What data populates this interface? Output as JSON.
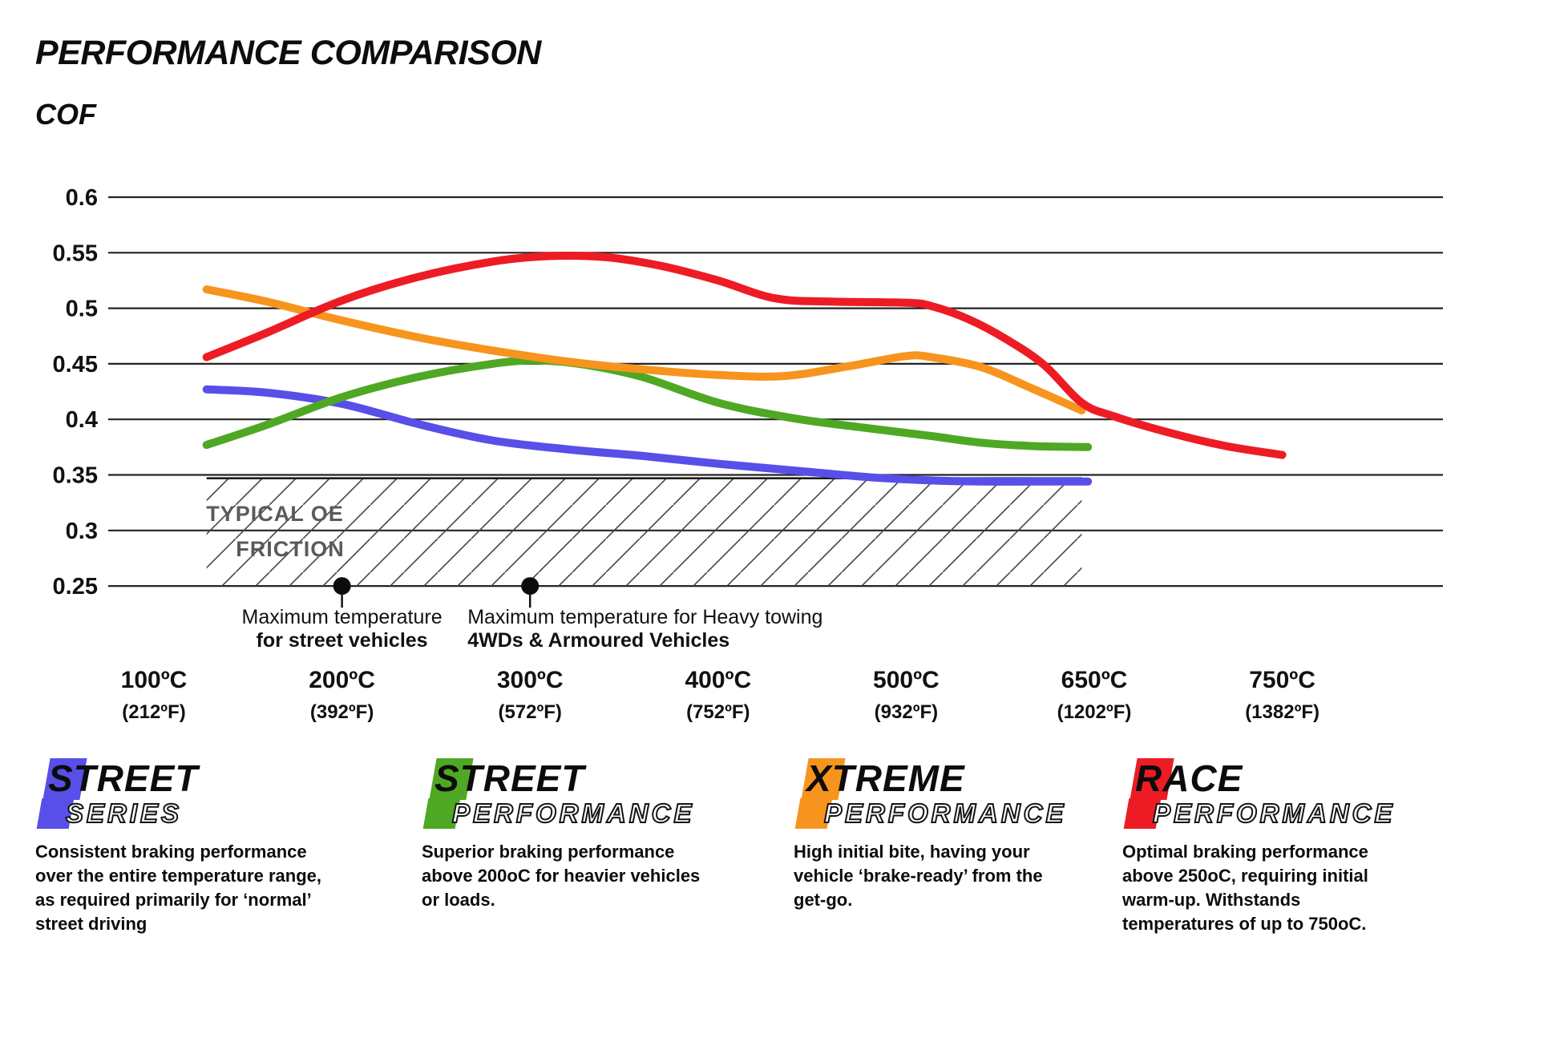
{
  "header": {
    "title": "PERFORMANCE COMPARISON"
  },
  "chart_data": {
    "type": "line",
    "title": "PERFORMANCE COMPARISON",
    "xlabel": "",
    "ylabel": "COF",
    "ylim": [
      0.25,
      0.6
    ],
    "grid": true,
    "legend_position": "bottom",
    "y_ticks": [
      0.6,
      0.55,
      0.5,
      0.45,
      0.4,
      0.35,
      0.3,
      0.25
    ],
    "x_tick_temps": [
      100,
      200,
      300,
      400,
      500,
      650,
      750
    ],
    "x_ticks": [
      {
        "c": "100ºC",
        "f": "(212ºF)"
      },
      {
        "c": "200ºC",
        "f": "(392ºF)"
      },
      {
        "c": "300ºC",
        "f": "(572ºF)"
      },
      {
        "c": "400ºC",
        "f": "(752ºF)"
      },
      {
        "c": "500ºC",
        "f": "(932ºF)"
      },
      {
        "c": "650ºC",
        "f": "(1202ºF)"
      },
      {
        "c": "750ºC",
        "f": "(1382ºF)"
      }
    ],
    "series": [
      {
        "name": "Street Series",
        "color": "#584fe8",
        "points": [
          [
            128,
            0.427
          ],
          [
            160,
            0.424
          ],
          [
            200,
            0.414
          ],
          [
            240,
            0.396
          ],
          [
            280,
            0.381
          ],
          [
            320,
            0.373
          ],
          [
            360,
            0.367
          ],
          [
            400,
            0.36
          ],
          [
            440,
            0.354
          ],
          [
            480,
            0.348
          ],
          [
            520,
            0.345
          ],
          [
            560,
            0.344
          ],
          [
            600,
            0.344
          ],
          [
            645,
            0.344
          ]
        ]
      },
      {
        "name": "Street Performance",
        "color": "#4FA823",
        "points": [
          [
            128,
            0.377
          ],
          [
            160,
            0.395
          ],
          [
            200,
            0.42
          ],
          [
            240,
            0.438
          ],
          [
            280,
            0.45
          ],
          [
            305,
            0.453
          ],
          [
            330,
            0.449
          ],
          [
            360,
            0.438
          ],
          [
            400,
            0.415
          ],
          [
            440,
            0.401
          ],
          [
            480,
            0.392
          ],
          [
            520,
            0.385
          ],
          [
            560,
            0.379
          ],
          [
            600,
            0.376
          ],
          [
            645,
            0.375
          ]
        ]
      },
      {
        "name": "Xtreme Performance",
        "color": "#F7941E",
        "points": [
          [
            128,
            0.517
          ],
          [
            160,
            0.506
          ],
          [
            200,
            0.489
          ],
          [
            240,
            0.474
          ],
          [
            280,
            0.462
          ],
          [
            320,
            0.452
          ],
          [
            360,
            0.445
          ],
          [
            400,
            0.44
          ],
          [
            435,
            0.439
          ],
          [
            470,
            0.448
          ],
          [
            500,
            0.457
          ],
          [
            520,
            0.456
          ],
          [
            560,
            0.447
          ],
          [
            600,
            0.428
          ],
          [
            640,
            0.408
          ]
        ]
      },
      {
        "name": "Race Performance",
        "color": "#ED1C24",
        "points": [
          [
            128,
            0.456
          ],
          [
            160,
            0.478
          ],
          [
            200,
            0.507
          ],
          [
            240,
            0.528
          ],
          [
            280,
            0.542
          ],
          [
            310,
            0.547
          ],
          [
            340,
            0.546
          ],
          [
            370,
            0.538
          ],
          [
            400,
            0.525
          ],
          [
            430,
            0.509
          ],
          [
            460,
            0.506
          ],
          [
            500,
            0.505
          ],
          [
            520,
            0.502
          ],
          [
            550,
            0.49
          ],
          [
            580,
            0.472
          ],
          [
            610,
            0.449
          ],
          [
            640,
            0.415
          ],
          [
            660,
            0.403
          ],
          [
            690,
            0.388
          ],
          [
            720,
            0.376
          ],
          [
            750,
            0.368
          ]
        ]
      }
    ],
    "oe_region": {
      "label_line1": "TYPICAL OE",
      "label_line2": "FRICTION",
      "from_temp": 128,
      "to_temp": 640,
      "top_cof": 0.347,
      "bottom_cof": 0.25
    },
    "annotations": [
      {
        "dot_temp": 200,
        "dot_cof": 0.25,
        "align": "center",
        "line1": "Maximum temperature",
        "line2": "for street vehicles"
      },
      {
        "dot_temp": 300,
        "dot_cof": 0.25,
        "align": "left",
        "line1": "Maximum temperature for Heavy towing",
        "line2": "4WDs & Armoured Vehicles"
      }
    ]
  },
  "legend": [
    {
      "word1": "STREET",
      "word2": "SERIES",
      "color": "#584fe8",
      "description": "Consistent braking performance over the entire temperature range, as required primarily for ‘normal’ street driving"
    },
    {
      "word1": "STREET",
      "word2": "PERFORMANCE",
      "color": "#4FA823",
      "description": "Superior braking performance above 200oC for heavier vehicles or loads."
    },
    {
      "word1": "XTREME",
      "word2": "PERFORMANCE",
      "color": "#F7941E",
      "description": "High initial bite, having your vehicle ‘brake-ready’ from the get-go."
    },
    {
      "word1": "RACE",
      "word2": "PERFORMANCE",
      "color": "#ED1C24",
      "description": "Optimal braking performance above 250oC, requiring initial warm-up. Withstands temperatures of up to 750oC."
    }
  ]
}
